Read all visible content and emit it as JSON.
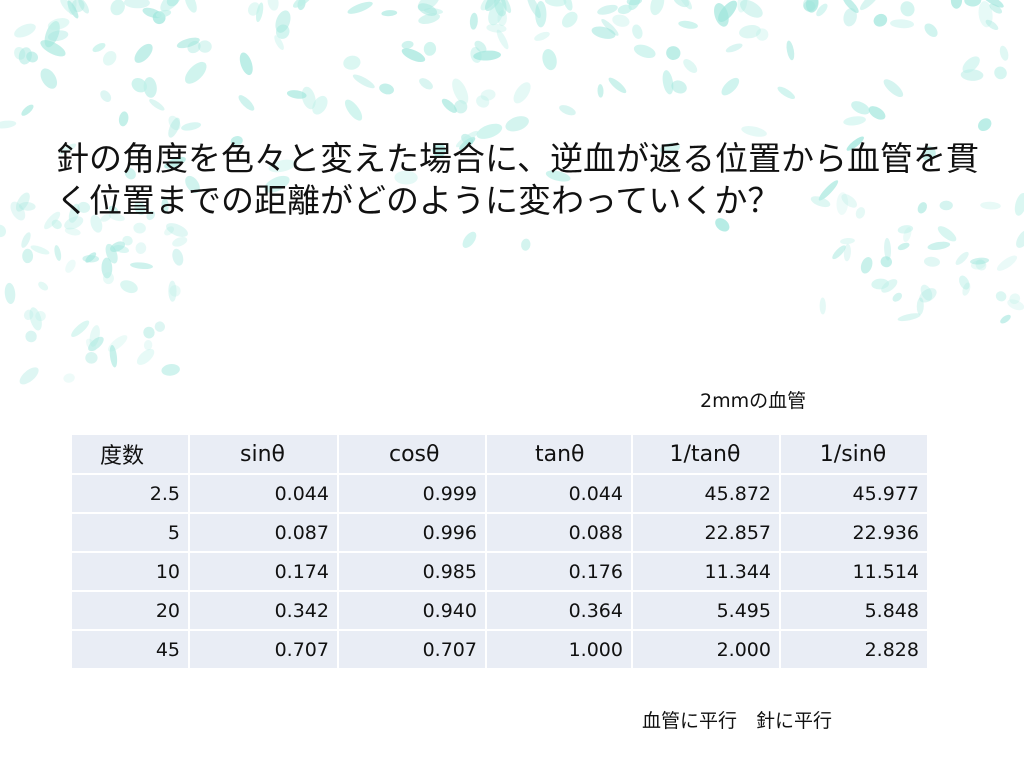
{
  "slide": {
    "title": "針の角度を色々と変えた場合に、逆血が返る位置から血管を貫く位置までの距離がどのように変わっていくか？",
    "caption_top": "2mmの血管",
    "caption_bottom": "血管に平行　針に平行",
    "background": "teal-leaf-pattern",
    "table_fill": "#e9edf5"
  },
  "table": {
    "headers": [
      "度数",
      "sinθ",
      "cosθ",
      "tanθ",
      "1/tanθ",
      "1/sinθ"
    ],
    "rows": [
      [
        "2.5",
        "0.044",
        "0.999",
        "0.044",
        "45.872",
        "45.977"
      ],
      [
        "5",
        "0.087",
        "0.996",
        "0.088",
        "22.857",
        "22.936"
      ],
      [
        "10",
        "0.174",
        "0.985",
        "0.176",
        "11.344",
        "11.514"
      ],
      [
        "20",
        "0.342",
        "0.940",
        "0.364",
        "5.495",
        "5.848"
      ],
      [
        "45",
        "0.707",
        "0.707",
        "1.000",
        "2.000",
        "2.828"
      ]
    ]
  }
}
